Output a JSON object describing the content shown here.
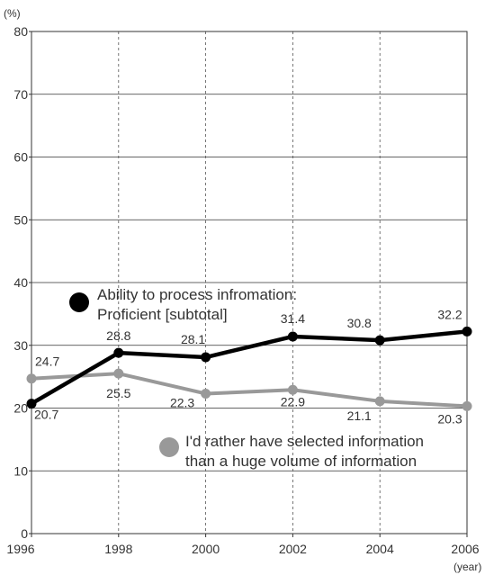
{
  "chart_data": {
    "type": "line",
    "y_unit": "(%)",
    "x_unit": "(year)",
    "x": [
      1996,
      1998,
      2000,
      2002,
      2004,
      2006
    ],
    "ylim": [
      0,
      80
    ],
    "y_ticks": [
      0,
      10,
      20,
      30,
      40,
      50,
      60,
      70,
      80
    ],
    "grid": "vertical dashed, horizontal solid",
    "series": [
      {
        "name": "Ability to process infromation: Proficient [subtotal]",
        "legend_lines": [
          "Ability to process infromation:",
          "Proficient [subtotal]"
        ],
        "color": "#000000",
        "values": [
          20.7,
          28.8,
          28.1,
          31.4,
          30.8,
          32.2
        ]
      },
      {
        "name": "I'd rather have selected information than a huge volume of information",
        "legend_lines": [
          "I'd rather have selected information",
          "than a huge volume of information"
        ],
        "color": "#999999",
        "values": [
          24.7,
          25.5,
          22.3,
          22.9,
          21.1,
          20.3
        ]
      }
    ]
  }
}
